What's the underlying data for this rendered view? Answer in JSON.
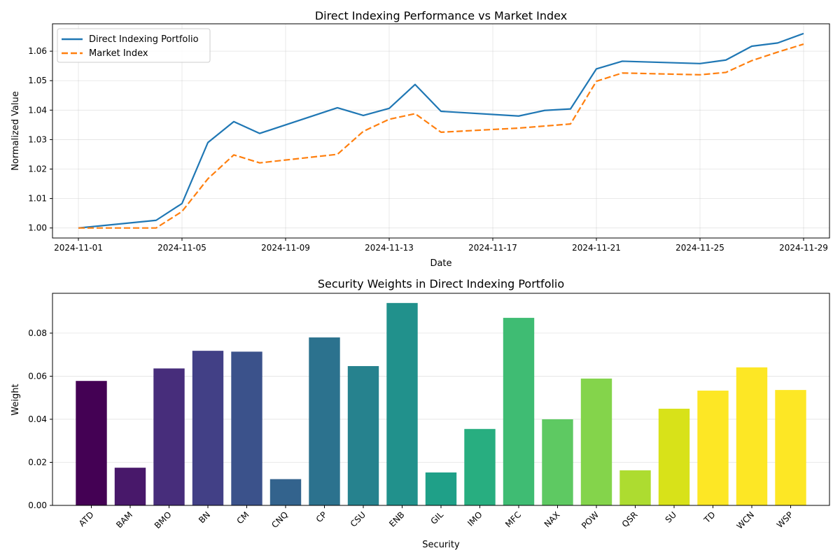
{
  "chart_data": [
    {
      "type": "line",
      "title": "Direct Indexing Performance vs Market Index",
      "xlabel": "Date",
      "ylabel": "Normalized Value",
      "x": [
        "2024-11-01",
        "2024-11-04",
        "2024-11-05",
        "2024-11-06",
        "2024-11-07",
        "2024-11-08",
        "2024-11-11",
        "2024-11-12",
        "2024-11-13",
        "2024-11-14",
        "2024-11-15",
        "2024-11-18",
        "2024-11-19",
        "2024-11-20",
        "2024-11-21",
        "2024-11-22",
        "2024-11-25",
        "2024-11-26",
        "2024-11-27",
        "2024-11-28",
        "2024-11-29"
      ],
      "x_ticks": [
        "2024-11-01",
        "2024-11-05",
        "2024-11-09",
        "2024-11-13",
        "2024-11-17",
        "2024-11-21",
        "2024-11-25",
        "2024-11-29"
      ],
      "xlim": [
        "2024-10-31",
        "2024-11-30"
      ],
      "ylim": [
        0.9966,
        1.0693
      ],
      "y_ticks": [
        "1.00",
        "1.01",
        "1.02",
        "1.03",
        "1.04",
        "1.05",
        "1.06"
      ],
      "grid": true,
      "legend": "top-left",
      "series": [
        {
          "name": "Direct Indexing Portfolio",
          "color": "#1f77b4",
          "style": "solid",
          "values": [
            1.0,
            1.0026,
            1.0083,
            1.029,
            1.0361,
            1.0321,
            1.0408,
            1.0382,
            1.0406,
            1.0487,
            1.0396,
            1.038,
            1.0399,
            1.0404,
            1.054,
            1.0566,
            1.0558,
            1.057,
            1.0617,
            1.0628,
            1.066
          ]
        },
        {
          "name": "Market Index",
          "color": "#ff7f0e",
          "style": "dashed",
          "values": [
            1.0,
            1.0,
            1.0056,
            1.0167,
            1.0248,
            1.0221,
            1.025,
            1.0328,
            1.0369,
            1.0388,
            1.0325,
            1.0339,
            1.0346,
            1.0353,
            1.0498,
            1.0526,
            1.052,
            1.0528,
            1.0568,
            1.0597,
            1.0624
          ]
        }
      ]
    },
    {
      "type": "bar",
      "title": "Security Weights in Direct Indexing Portfolio",
      "xlabel": "Security",
      "ylabel": "Weight",
      "ylim": [
        0,
        0.0985
      ],
      "y_ticks": [
        "0.00",
        "0.02",
        "0.04",
        "0.06",
        "0.08"
      ],
      "grid": true,
      "categories": [
        "ATD",
        "BAM",
        "BMO",
        "BN",
        "CM",
        "CNQ",
        "CP",
        "CSU",
        "ENB",
        "GIL",
        "IMO",
        "MFC",
        "NAX",
        "POW",
        "QSR",
        "SU",
        "TD",
        "WCN",
        "WSP"
      ],
      "values": [
        0.0578,
        0.0175,
        0.0636,
        0.0718,
        0.0714,
        0.0122,
        0.078,
        0.0647,
        0.094,
        0.0153,
        0.0355,
        0.0871,
        0.04,
        0.0589,
        0.0163,
        0.0449,
        0.0533,
        0.0641,
        0.0536
      ],
      "colors": [
        "#440154",
        "#48186a",
        "#472d7b",
        "#424086",
        "#3b528b",
        "#33638d",
        "#2c728e",
        "#26828e",
        "#21918c",
        "#1fa088",
        "#28ae80",
        "#3fbc73",
        "#5ec962",
        "#84d44b",
        "#addc30",
        "#d8e219",
        "#fde725",
        "#fde725",
        "#fde725"
      ]
    }
  ]
}
